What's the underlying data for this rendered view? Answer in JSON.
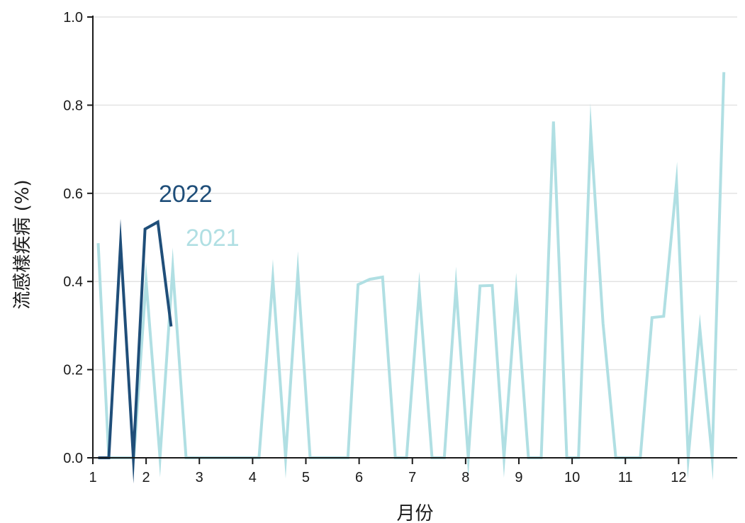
{
  "chart_data": {
    "type": "line",
    "title": "",
    "xlabel": "月份",
    "ylabel": "流感樣疾病 (%)",
    "xlim": [
      1,
      13.1
    ],
    "ylim": [
      0,
      1.0
    ],
    "x_ticks": [
      1,
      2,
      3,
      4,
      5,
      6,
      7,
      8,
      9,
      10,
      11,
      12
    ],
    "x_tick_labels": [
      "1",
      "2",
      "3",
      "4",
      "5",
      "6",
      "7",
      "8",
      "9",
      "10",
      "11",
      "12"
    ],
    "y_ticks": [
      0,
      0.2,
      0.4,
      0.6,
      0.8,
      1.0
    ],
    "y_tick_labels": [
      "0.0",
      "0.2",
      "0.4",
      "0.6",
      "0.8",
      "1.0"
    ],
    "grid": "horizontal",
    "legend": "inline labels",
    "series": [
      {
        "name": "2021",
        "color": "#b0dfe3",
        "x": [
          1.1,
          1.3,
          1.55,
          1.77,
          2.0,
          2.26,
          2.5,
          2.75,
          2.98,
          3.2,
          3.42,
          3.66,
          3.88,
          4.12,
          4.38,
          4.62,
          4.85,
          5.08,
          5.33,
          5.56,
          5.79,
          5.98,
          6.2,
          6.44,
          6.68,
          6.89,
          7.13,
          7.37,
          7.6,
          7.82,
          8.05,
          8.27,
          8.5,
          8.72,
          8.95,
          9.18,
          9.42,
          9.65,
          9.9,
          10.12,
          10.35,
          10.58,
          10.82,
          11.04,
          11.28,
          11.5,
          11.72,
          11.96,
          12.18,
          12.4,
          12.63,
          12.85
        ],
        "y": [
          0.487,
          0.0,
          0.0,
          0.0,
          0.402,
          0.0,
          0.43,
          0.0,
          0.0,
          0.0,
          0.0,
          0.0,
          0.0,
          0.0,
          0.407,
          0.0,
          0.42,
          0.0,
          0.0,
          0.0,
          0.0,
          0.393,
          0.405,
          0.41,
          0.0,
          0.0,
          0.38,
          0.0,
          0.0,
          0.388,
          0.0,
          0.39,
          0.391,
          0.0,
          0.376,
          0.0,
          0.0,
          0.763,
          0.0,
          0.0,
          0.741,
          0.305,
          0.0,
          0.0,
          0.0,
          0.318,
          0.321,
          0.625,
          0.0,
          0.292,
          0.0,
          0.875
        ]
      },
      {
        "name": "2022",
        "color": "#1f4e79",
        "x": [
          1.1,
          1.3,
          1.52,
          1.76,
          1.98,
          2.22,
          2.47
        ],
        "y": [
          0.0,
          0.0,
          0.486,
          0.0,
          0.519,
          0.535,
          0.298
        ]
      }
    ]
  }
}
